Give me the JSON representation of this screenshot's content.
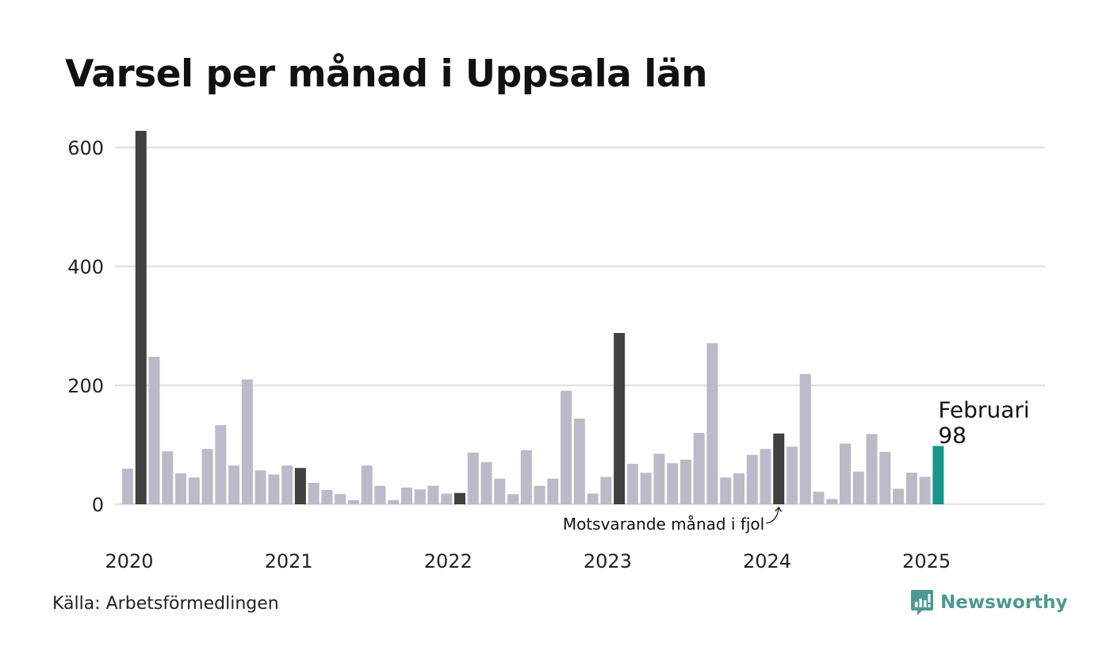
{
  "header": {
    "title": "Varsel per månad i Uppsala län"
  },
  "footer": {
    "source": "Källa: Arbetsförmedlingen",
    "brand": "Newsworthy"
  },
  "colors": {
    "bar": "#bcbac8",
    "highlight_prior_year": "#404040",
    "current": "#16978a",
    "grid": "#e2e2e2",
    "brand": "#4a9a92"
  },
  "chart_data": {
    "type": "bar",
    "title": "Varsel per månad i Uppsala län",
    "ylim": [
      0,
      640
    ],
    "yticks": [
      0,
      200,
      400,
      600
    ],
    "ytick_labels": [
      "0",
      "200",
      "400",
      "600"
    ],
    "x_labels": [
      "2020",
      "2021",
      "2022",
      "2023",
      "2024",
      "2025"
    ],
    "grid": true,
    "start_month": "2020-01",
    "values": [
      60,
      628,
      248,
      89,
      52,
      45,
      93,
      133,
      65,
      210,
      57,
      50,
      65,
      61,
      36,
      24,
      17,
      7,
      65,
      31,
      7,
      28,
      25,
      31,
      18,
      19,
      87,
      71,
      43,
      17,
      91,
      31,
      43,
      191,
      144,
      18,
      46,
      288,
      68,
      53,
      85,
      69,
      75,
      120,
      271,
      45,
      52,
      83,
      93,
      119,
      97,
      219,
      21,
      9,
      102,
      55,
      118,
      88,
      26,
      53,
      46,
      98
    ],
    "highlight_months": [
      "2020-02",
      "2021-02",
      "2022-02",
      "2023-02",
      "2024-02"
    ],
    "current_month": "2025-02",
    "current_label": "Februari",
    "current_value_label": "98",
    "annotation": "Motsvarande månad i fjol"
  }
}
